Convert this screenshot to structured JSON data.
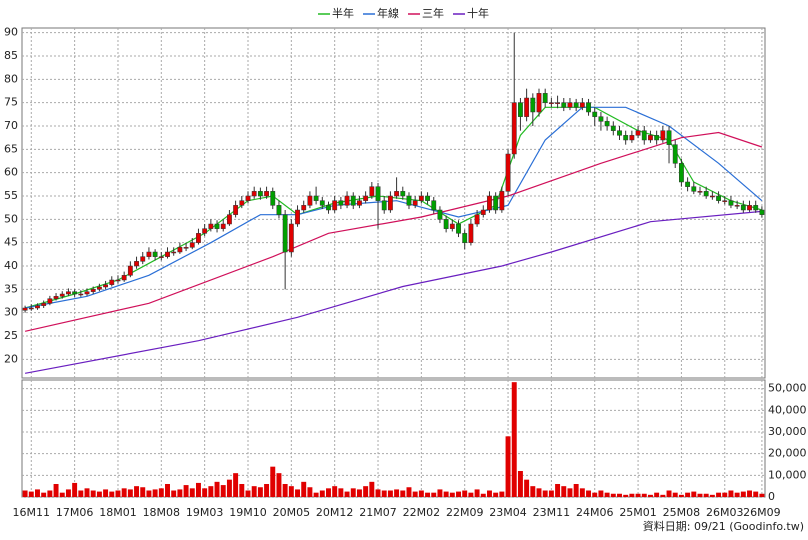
{
  "chart_data": {
    "type": "candlestick",
    "categories": [
      null,
      "16M11",
      null,
      null,
      null,
      null,
      null,
      null,
      "17M06",
      null,
      null,
      null,
      null,
      null,
      null,
      "18M01",
      null,
      null,
      null,
      null,
      null,
      null,
      "18M08",
      null,
      null,
      null,
      null,
      null,
      null,
      "19M03",
      null,
      null,
      null,
      null,
      null,
      null,
      "19M10",
      null,
      null,
      null,
      null,
      null,
      null,
      "20M05",
      null,
      null,
      null,
      null,
      null,
      null,
      "20M12",
      null,
      null,
      null,
      null,
      null,
      null,
      "21M07",
      null,
      null,
      null,
      null,
      null,
      null,
      "22M02",
      null,
      null,
      null,
      null,
      null,
      null,
      "22M09",
      null,
      null,
      null,
      null,
      null,
      null,
      "23M04",
      null,
      null,
      null,
      null,
      null,
      null,
      "23M11",
      null,
      null,
      null,
      null,
      null,
      null,
      "24M06",
      null,
      null,
      null,
      null,
      null,
      null,
      "25M01",
      null,
      null,
      null,
      null,
      null,
      null,
      "25M08",
      null,
      null,
      null,
      null,
      null,
      null,
      "26M03",
      null,
      null,
      null,
      null,
      null,
      "26M09"
    ],
    "ohlc": [
      [
        30.5,
        31.5,
        30,
        31
      ],
      [
        31,
        31.8,
        30.4,
        31
      ],
      [
        31,
        32,
        30.6,
        31.5
      ],
      [
        31.5,
        32.6,
        31,
        32
      ],
      [
        32,
        33.6,
        31.6,
        33
      ],
      [
        33,
        34.2,
        32.6,
        33.5
      ],
      [
        33.5,
        34.6,
        33,
        34
      ],
      [
        34,
        35.2,
        33.6,
        34.5
      ],
      [
        34.5,
        35,
        33.4,
        34
      ],
      [
        34,
        34.8,
        33.4,
        34
      ],
      [
        34,
        35.2,
        33.6,
        34.5
      ],
      [
        34.5,
        35.6,
        34,
        35
      ],
      [
        35,
        36.2,
        34.6,
        35.5
      ],
      [
        35.5,
        36.8,
        35,
        36
      ],
      [
        36,
        37.8,
        35.6,
        37
      ],
      [
        37,
        38,
        36.2,
        37
      ],
      [
        37,
        38.8,
        36.6,
        38
      ],
      [
        38,
        41,
        37.6,
        40
      ],
      [
        40,
        42,
        39.4,
        41
      ],
      [
        41,
        43,
        40.4,
        42
      ],
      [
        42,
        44,
        41.4,
        43
      ],
      [
        43,
        43.6,
        41.2,
        42
      ],
      [
        42,
        43,
        41.2,
        42
      ],
      [
        42,
        44,
        41.6,
        43
      ],
      [
        43,
        44,
        42.2,
        43
      ],
      [
        43,
        45,
        42.6,
        44
      ],
      [
        44,
        45,
        43.2,
        44
      ],
      [
        44,
        46,
        43.6,
        45
      ],
      [
        45,
        48,
        44.6,
        47
      ],
      [
        47,
        49,
        46.4,
        48
      ],
      [
        48,
        50,
        47.4,
        49
      ],
      [
        49,
        49.8,
        47.2,
        48
      ],
      [
        48,
        50,
        47.4,
        49
      ],
      [
        49,
        52,
        48.6,
        51
      ],
      [
        51,
        54,
        50.4,
        53
      ],
      [
        53,
        55,
        52.4,
        54
      ],
      [
        54,
        56,
        53.4,
        55
      ],
      [
        55,
        57,
        54.4,
        56
      ],
      [
        56,
        56.8,
        54.2,
        55
      ],
      [
        55,
        57,
        54.4,
        56
      ],
      [
        56,
        56.8,
        52.2,
        53
      ],
      [
        53,
        54,
        50.2,
        51
      ],
      [
        51,
        52,
        35,
        43
      ],
      [
        43,
        50,
        42,
        49
      ],
      [
        49,
        53,
        48.4,
        52
      ],
      [
        52,
        54,
        51.4,
        53
      ],
      [
        53,
        56,
        52.4,
        55
      ],
      [
        55,
        57,
        53.2,
        54
      ],
      [
        54,
        54.8,
        52.2,
        53
      ],
      [
        53,
        53.8,
        51.2,
        52
      ],
      [
        52,
        55,
        51.4,
        54
      ],
      [
        54,
        54.8,
        52.2,
        53
      ],
      [
        53,
        56,
        52.4,
        55
      ],
      [
        55,
        55.8,
        52.2,
        53
      ],
      [
        53,
        55,
        52.4,
        54
      ],
      [
        54,
        56,
        53.4,
        55
      ],
      [
        55,
        58,
        54.4,
        57
      ],
      [
        57,
        57.8,
        48,
        54
      ],
      [
        54,
        55,
        51.2,
        52
      ],
      [
        52,
        56,
        51.4,
        55
      ],
      [
        55,
        59,
        54.4,
        56
      ],
      [
        56,
        57,
        54.2,
        55
      ],
      [
        55,
        55.8,
        52.2,
        53
      ],
      [
        53,
        55,
        52.4,
        54
      ],
      [
        54,
        56,
        53.4,
        55
      ],
      [
        55,
        55.8,
        53.2,
        54
      ],
      [
        54,
        54.8,
        51.2,
        52
      ],
      [
        52,
        52.8,
        49.2,
        50
      ],
      [
        50,
        50.8,
        47.2,
        48
      ],
      [
        48,
        50,
        47.4,
        49
      ],
      [
        49,
        49.8,
        46.2,
        47
      ],
      [
        47,
        47.8,
        43.6,
        45
      ],
      [
        45,
        50,
        44.4,
        49
      ],
      [
        49,
        52,
        48.4,
        51
      ],
      [
        51,
        53,
        50.4,
        52
      ],
      [
        52,
        56,
        51.4,
        55
      ],
      [
        55,
        55.8,
        51.2,
        52
      ],
      [
        52,
        57,
        51.4,
        56
      ],
      [
        56,
        65,
        55,
        64
      ],
      [
        64,
        90,
        63,
        75
      ],
      [
        75,
        76,
        69,
        72
      ],
      [
        72,
        78,
        71,
        76
      ],
      [
        76,
        77,
        70,
        73
      ],
      [
        73,
        78,
        72,
        77
      ],
      [
        77,
        78,
        74,
        75
      ],
      [
        75,
        76,
        74,
        75
      ],
      [
        75,
        76.5,
        73.8,
        75
      ],
      [
        75,
        76,
        73.2,
        74
      ],
      [
        74,
        76,
        73.4,
        75
      ],
      [
        75,
        75.8,
        73.2,
        74
      ],
      [
        74,
        76,
        73.4,
        75
      ],
      [
        75,
        75.8,
        72.2,
        73
      ],
      [
        73,
        74,
        70,
        72
      ],
      [
        72,
        73,
        69,
        71
      ],
      [
        71,
        72,
        69,
        70
      ],
      [
        70,
        71,
        68,
        69
      ],
      [
        69,
        70,
        67,
        68
      ],
      [
        68,
        69,
        66,
        67
      ],
      [
        67,
        69,
        66.4,
        68
      ],
      [
        68,
        70,
        67.4,
        69
      ],
      [
        69,
        70,
        66,
        67
      ],
      [
        67,
        69,
        66.4,
        68
      ],
      [
        68,
        69,
        66,
        67
      ],
      [
        67,
        70,
        66.4,
        69
      ],
      [
        69,
        70,
        62,
        66
      ],
      [
        66,
        67,
        61,
        62
      ],
      [
        62,
        63,
        57,
        58
      ],
      [
        58,
        59,
        56,
        57
      ],
      [
        57,
        58,
        55.4,
        56
      ],
      [
        56,
        57,
        55.2,
        56
      ],
      [
        56,
        57,
        54.4,
        55
      ],
      [
        55,
        56,
        54.2,
        55
      ],
      [
        55,
        56,
        53.4,
        54
      ],
      [
        54,
        55,
        53.2,
        54
      ],
      [
        54,
        55,
        52.4,
        53
      ],
      [
        53,
        54,
        52.2,
        53
      ],
      [
        53,
        54,
        51.4,
        52
      ],
      [
        52,
        54,
        51.6,
        53
      ],
      [
        53,
        54,
        51.4,
        52
      ],
      [
        52,
        52.8,
        50.4,
        51
      ]
    ],
    "up_color": "#e00000",
    "down_color": "#00a000",
    "ylim": [
      16,
      91
    ],
    "yticks": [
      20,
      25,
      30,
      35,
      40,
      45,
      50,
      55,
      60,
      65,
      70,
      75,
      80,
      85,
      90
    ],
    "grid": true,
    "volume": {
      "color": "#e00000",
      "values": [
        3000,
        2500,
        3500,
        2000,
        3000,
        6000,
        2000,
        3500,
        6500,
        3000,
        4000,
        3000,
        2500,
        3500,
        2500,
        3000,
        4000,
        3500,
        5000,
        4500,
        3000,
        3500,
        4000,
        6000,
        3000,
        3500,
        5500,
        4000,
        6500,
        4000,
        5000,
        7000,
        5500,
        8000,
        11000,
        6000,
        3000,
        5000,
        4500,
        6000,
        14000,
        11000,
        6000,
        5000,
        3500,
        7000,
        4500,
        2000,
        3000,
        4000,
        5000,
        4000,
        2500,
        4000,
        3500,
        5000,
        7000,
        3500,
        3000,
        3000,
        3500,
        3000,
        4500,
        2500,
        3000,
        2000,
        2000,
        3500,
        2500,
        2000,
        2500,
        3000,
        2000,
        3500,
        1500,
        3000,
        2000,
        2500,
        28000,
        53000,
        12000,
        8000,
        5000,
        4000,
        3000,
        3000,
        6000,
        5000,
        4000,
        6000,
        4000,
        3000,
        2000,
        3000,
        2000,
        1500,
        1500,
        1000,
        1500,
        1500,
        1500,
        1000,
        2000,
        1000,
        3000,
        2000,
        1000,
        2000,
        2500,
        1500,
        1500,
        1000,
        2000,
        2000,
        3000,
        2000,
        2500,
        3000,
        2500,
        1500
      ],
      "ylim": [
        0,
        54000
      ],
      "yticks": [
        0,
        {
          "value": 10000,
          "label": "10,000"
        },
        {
          "value": 20000,
          "label": "20,000"
        },
        {
          "value": 30000,
          "label": "30,000"
        },
        {
          "value": 40000,
          "label": "40,000"
        },
        {
          "value": 50000,
          "label": "50,000"
        }
      ]
    },
    "moving_averages": [
      {
        "name": "半年",
        "color": "#22bb22",
        "x": [
          0,
          8,
          15,
          22,
          29,
          36,
          40,
          44,
          50,
          57,
          64,
          70,
          76,
          80,
          84,
          92,
          99,
          104,
          108,
          114,
          119
        ],
        "values": [
          31,
          34,
          37,
          42,
          47,
          54,
          55,
          51,
          53.5,
          55,
          54,
          49,
          53,
          68,
          74,
          74,
          69,
          67,
          58,
          54,
          52
        ]
      },
      {
        "name": "年線",
        "color": "#2a6fd6",
        "x": [
          0,
          10,
          20,
          30,
          38,
          44,
          50,
          60,
          70,
          78,
          84,
          90,
          97,
          104,
          112,
          119
        ],
        "values": [
          31,
          33.5,
          38,
          45,
          51,
          51,
          53,
          54,
          50.5,
          53,
          67,
          74,
          74,
          70,
          62,
          54
        ]
      },
      {
        "name": "三年",
        "color": "#d0105a",
        "x": [
          0,
          20,
          40,
          49,
          64,
          78,
          93,
          106,
          112,
          119
        ],
        "values": [
          26,
          32,
          42,
          47,
          50.5,
          55,
          62,
          67.5,
          68.6,
          65.5
        ]
      },
      {
        "name": "十年",
        "color": "#6a1fc0",
        "x": [
          0,
          28,
          44,
          61,
          77,
          85,
          101,
          119
        ],
        "values": [
          17,
          24,
          29,
          35.6,
          40,
          43,
          49.5,
          51.7
        ]
      }
    ],
    "source": "資料日期: 09/21 (Goodinfo.tw)"
  }
}
